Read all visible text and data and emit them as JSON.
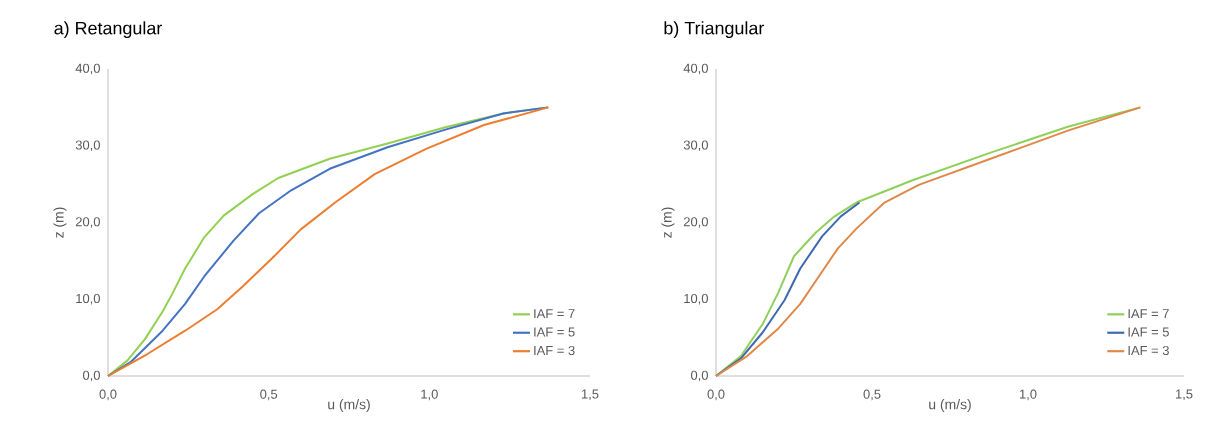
{
  "chart_data": [
    {
      "type": "line",
      "title": "a)  Retangular",
      "xlabel": "u (m/s)",
      "ylabel": "z (m)",
      "xlim": [
        0,
        1.5
      ],
      "ylim": [
        0,
        40
      ],
      "xticks": [
        {
          "value": 0,
          "label": "0,0"
        },
        {
          "value": 0.5,
          "label": "0,5"
        },
        {
          "value": 1.0,
          "label": "1,0"
        },
        {
          "value": 1.5,
          "label": "1,5"
        }
      ],
      "yticks": [
        {
          "value": 0,
          "label": "0,0"
        },
        {
          "value": 10,
          "label": "10,0"
        },
        {
          "value": 20,
          "label": "20,0"
        },
        {
          "value": 30,
          "label": "30,0"
        },
        {
          "value": 40,
          "label": "40,0"
        }
      ],
      "legend": "bottom right",
      "series": [
        {
          "name": "IAF = 7",
          "color": "#92d050",
          "x": [
            0,
            0.06,
            0.115,
            0.17,
            0.2,
            0.24,
            0.3,
            0.36,
            0.45,
            0.53,
            0.69,
            0.87,
            1.05,
            1.23,
            1.37
          ],
          "values": [
            0,
            2,
            4.8,
            8.4,
            10.7,
            14,
            18.1,
            20.9,
            23.7,
            25.8,
            28.3,
            30.3,
            32.4,
            34.2,
            35
          ]
        },
        {
          "name": "IAF = 5",
          "color": "#4472c4",
          "x": [
            0,
            0.07,
            0.17,
            0.24,
            0.3,
            0.39,
            0.47,
            0.57,
            0.69,
            0.87,
            1.05,
            1.23,
            1.37
          ],
          "values": [
            0,
            1.8,
            5.9,
            9.4,
            13,
            17.6,
            21.2,
            24.2,
            27,
            29.8,
            32.1,
            34.2,
            35
          ]
        },
        {
          "name": "IAF = 3",
          "color": "#ed7d31",
          "x": [
            0,
            0.12,
            0.24,
            0.34,
            0.42,
            0.51,
            0.6,
            0.71,
            0.83,
            0.99,
            1.17,
            1.37
          ],
          "values": [
            0,
            2.8,
            5.9,
            8.7,
            11.7,
            15.3,
            19.1,
            22.7,
            26.3,
            29.6,
            32.7,
            35
          ]
        }
      ]
    },
    {
      "type": "line",
      "title": "b)  Triangular",
      "xlabel": "u (m/s)",
      "ylabel": "z (m)",
      "xlim": [
        0,
        1.5
      ],
      "ylim": [
        0,
        40
      ],
      "xticks": [
        {
          "value": 0,
          "label": "0,0"
        },
        {
          "value": 0.5,
          "label": "0,5"
        },
        {
          "value": 1.0,
          "label": "1,0"
        },
        {
          "value": 1.5,
          "label": "1,5"
        }
      ],
      "yticks": [
        {
          "value": 0,
          "label": "0,0"
        },
        {
          "value": 10,
          "label": "10,0"
        },
        {
          "value": 20,
          "label": "20,0"
        },
        {
          "value": 30,
          "label": "30,0"
        },
        {
          "value": 40,
          "label": "40,0"
        }
      ],
      "legend": "bottom right",
      "series": [
        {
          "name": "IAF = 7",
          "color": "#8fcf5a",
          "x": [
            0,
            0.08,
            0.15,
            0.2,
            0.25,
            0.32,
            0.38,
            0.45,
            0.63,
            0.88,
            1.13,
            1.36
          ],
          "values": [
            0,
            2.6,
            6.8,
            10.9,
            15.6,
            18.7,
            20.8,
            22.6,
            25.5,
            29.1,
            32.5,
            35
          ]
        },
        {
          "name": "IAF = 5",
          "color": "#3e68b0",
          "x": [
            0,
            0.08,
            0.15,
            0.22,
            0.27,
            0.34,
            0.4,
            0.46
          ],
          "values": [
            0,
            2.3,
            5.7,
            9.9,
            14,
            18.2,
            20.8,
            22.6
          ]
        },
        {
          "name": "IAF = 3",
          "color": "#e0884a",
          "x": [
            0,
            0.1,
            0.2,
            0.27,
            0.33,
            0.39,
            0.45,
            0.54,
            0.65,
            0.88,
            1.13,
            1.36
          ],
          "values": [
            0,
            2.6,
            6.2,
            9.4,
            13,
            16.6,
            19.2,
            22.6,
            24.9,
            28.3,
            32,
            35
          ]
        }
      ]
    }
  ]
}
